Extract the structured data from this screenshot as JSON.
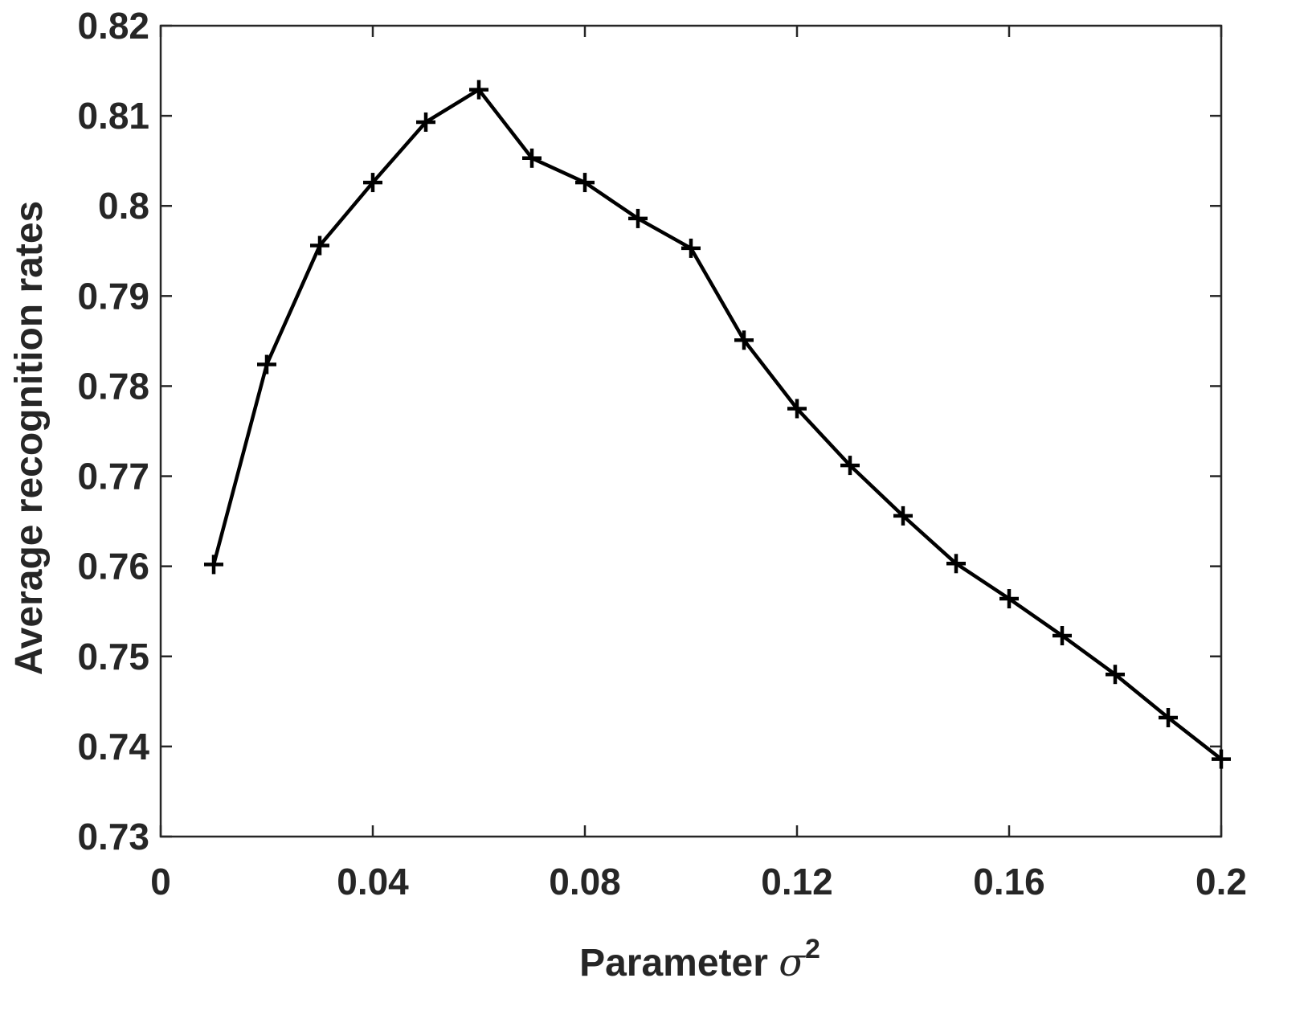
{
  "chart_data": {
    "type": "line",
    "title": "",
    "xlabel": "Parameter",
    "xlabel_symbol": "σ",
    "xlabel_superscript": "2",
    "ylabel": "Average recognition rates",
    "xlim": [
      0,
      0.2
    ],
    "ylim": [
      0.73,
      0.82
    ],
    "xticks": [
      0,
      0.04,
      0.08,
      0.12,
      0.16,
      0.2
    ],
    "xtick_labels": [
      "0",
      "0.04",
      "0.08",
      "0.12",
      "0.16",
      "0.2"
    ],
    "yticks": [
      0.73,
      0.74,
      0.75,
      0.76,
      0.77,
      0.78,
      0.79,
      0.8,
      0.81,
      0.82
    ],
    "ytick_labels": [
      "0.73",
      "0.74",
      "0.75",
      "0.76",
      "0.77",
      "0.78",
      "0.79",
      "0.8",
      "0.81",
      "0.82"
    ],
    "grid": false,
    "legend": "none",
    "marker": "plus",
    "line_color": "#000000",
    "series": [
      {
        "x": [
          0.01,
          0.02,
          0.03,
          0.04,
          0.05,
          0.06,
          0.07,
          0.08,
          0.09,
          0.1,
          0.11,
          0.12,
          0.13,
          0.14,
          0.15,
          0.16,
          0.17,
          0.18,
          0.19,
          0.2
        ],
        "values": [
          0.7602,
          0.7824,
          0.7956,
          0.8026,
          0.8093,
          0.8129,
          0.8053,
          0.8026,
          0.7986,
          0.7953,
          0.7851,
          0.7775,
          0.7712,
          0.7656,
          0.7603,
          0.7564,
          0.7523,
          0.748,
          0.7432,
          0.7386
        ]
      }
    ]
  }
}
